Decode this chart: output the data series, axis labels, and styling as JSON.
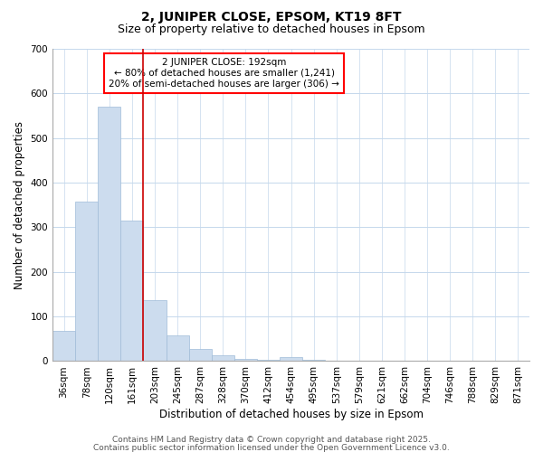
{
  "title1": "2, JUNIPER CLOSE, EPSOM, KT19 8FT",
  "title2": "Size of property relative to detached houses in Epsom",
  "xlabel": "Distribution of detached houses by size in Epsom",
  "ylabel": "Number of detached properties",
  "bar_labels": [
    "36sqm",
    "78sqm",
    "120sqm",
    "161sqm",
    "203sqm",
    "245sqm",
    "287sqm",
    "328sqm",
    "370sqm",
    "412sqm",
    "454sqm",
    "495sqm",
    "537sqm",
    "579sqm",
    "621sqm",
    "662sqm",
    "704sqm",
    "746sqm",
    "788sqm",
    "829sqm",
    "871sqm"
  ],
  "bar_values": [
    67,
    358,
    570,
    315,
    137,
    57,
    27,
    14,
    5,
    3,
    10,
    3,
    0,
    0,
    0,
    0,
    0,
    0,
    0,
    0,
    0
  ],
  "bar_color": "#ccdcee",
  "bar_edge_color": "#a0bcd8",
  "red_line_index": 4,
  "annotation_title": "2 JUNIPER CLOSE: 192sqm",
  "annotation_line1": "← 80% of detached houses are smaller (1,241)",
  "annotation_line2": "20% of semi-detached houses are larger (306) →",
  "red_line_color": "#cc0000",
  "ylim": [
    0,
    700
  ],
  "yticks": [
    0,
    100,
    200,
    300,
    400,
    500,
    600,
    700
  ],
  "footnote1": "Contains HM Land Registry data © Crown copyright and database right 2025.",
  "footnote2": "Contains public sector information licensed under the Open Government Licence v3.0.",
  "background_color": "#ffffff",
  "plot_bg_color": "#ffffff",
  "grid_color": "#c5d8ec",
  "title1_fontsize": 10,
  "title2_fontsize": 9,
  "axis_label_fontsize": 8.5,
  "tick_fontsize": 7.5,
  "annotation_fontsize": 7.5,
  "footnote_fontsize": 6.5
}
